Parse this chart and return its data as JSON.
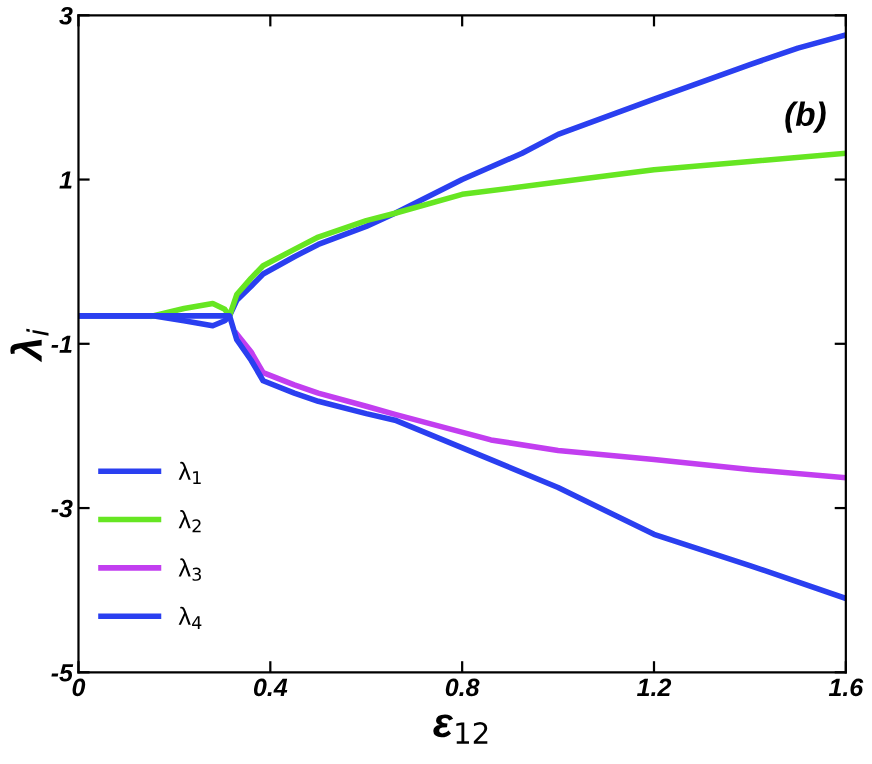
{
  "chart_data": {
    "type": "line",
    "xlabel": "ε$_{12}$",
    "ylabel": "λ$_{i}$",
    "annotations": [
      "(b)"
    ],
    "xlim": [
      0,
      1.6
    ],
    "ylim": [
      -5,
      3
    ],
    "xticks": [
      0,
      0.4,
      0.8,
      1.2,
      1.6
    ],
    "yticks": [
      -5,
      -3,
      -1,
      1,
      3
    ],
    "grid": false,
    "legend": "bottom left",
    "marker": "none",
    "line_style": "solid",
    "series": [
      {
        "name": "λ$_{1}$",
        "color": "#2a3ff0",
        "x": [
          0,
          0.155,
          0.22,
          0.28,
          0.305,
          0.315,
          0.33,
          0.36,
          0.385,
          0.45,
          0.5,
          0.6,
          0.66,
          0.8,
          0.925,
          1.0,
          1.2,
          1.4,
          1.5,
          1.6
        ],
        "values": [
          -0.66,
          -0.66,
          -0.72,
          -0.78,
          -0.72,
          -0.66,
          -0.47,
          -0.3,
          -0.15,
          0.06,
          0.21,
          0.43,
          0.59,
          1.0,
          1.32,
          1.55,
          1.98,
          2.4,
          2.6,
          2.76
        ]
      },
      {
        "name": "λ$_{2}$",
        "color": "#66e622",
        "x": [
          0.155,
          0.22,
          0.28,
          0.305,
          0.315,
          0.33,
          0.36,
          0.385,
          0.45,
          0.5,
          0.6,
          0.66,
          0.8,
          1.0,
          1.2,
          1.4,
          1.6
        ],
        "values": [
          -0.66,
          -0.57,
          -0.51,
          -0.58,
          -0.66,
          -0.4,
          -0.2,
          -0.05,
          0.15,
          0.3,
          0.5,
          0.59,
          0.82,
          0.97,
          1.12,
          1.22,
          1.32
        ]
      },
      {
        "name": "λ$_{3}$",
        "color": "#c23ef0",
        "x": [
          0.33,
          0.36,
          0.385,
          0.45,
          0.5,
          0.6,
          0.66,
          0.86,
          1.0,
          1.2,
          1.4,
          1.6
        ],
        "values": [
          -0.88,
          -1.1,
          -1.35,
          -1.5,
          -1.6,
          -1.76,
          -1.86,
          -2.17,
          -2.3,
          -2.41,
          -2.53,
          -2.63
        ]
      },
      {
        "name": "λ$_{4}$",
        "color": "#2a3ff0",
        "x": [
          0,
          0.155,
          0.3,
          0.315,
          0.33,
          0.36,
          0.385,
          0.45,
          0.5,
          0.6,
          0.66,
          0.86,
          1.0,
          1.2,
          1.4,
          1.6
        ],
        "values": [
          -0.66,
          -0.66,
          -0.66,
          -0.66,
          -0.95,
          -1.2,
          -1.45,
          -1.6,
          -1.7,
          -1.85,
          -1.93,
          -2.41,
          -2.75,
          -3.32,
          -3.7,
          -4.1
        ]
      }
    ]
  }
}
